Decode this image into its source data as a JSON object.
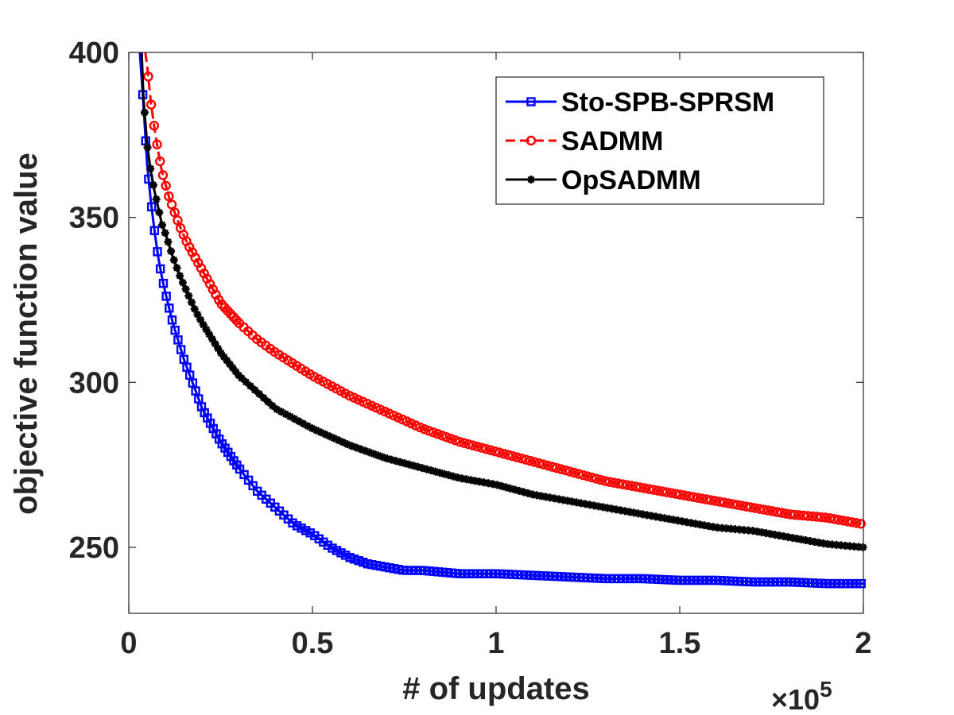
{
  "chart_data": {
    "type": "line",
    "xlabel": "# of updates",
    "ylabel": "objective function value",
    "x_exponent_label": "×10",
    "x_exponent_power": "5",
    "xlim": [
      0,
      2
    ],
    "ylim": [
      230,
      400
    ],
    "xticks": [
      0,
      0.5,
      1,
      1.5,
      2
    ],
    "xtick_labels": [
      "0",
      "0.5",
      "1",
      "1.5",
      "2"
    ],
    "yticks": [
      250,
      300,
      350,
      400
    ],
    "ytick_labels": [
      "250",
      "300",
      "350",
      "400"
    ],
    "grid": false,
    "legend_position": "top-right",
    "series": [
      {
        "name": "Sto-SPB-SPRSM",
        "color": "#0000ff",
        "line_style": "solid",
        "marker": "square",
        "x": [
          0.03,
          0.04,
          0.05,
          0.06,
          0.07,
          0.08,
          0.09,
          0.1,
          0.12,
          0.15,
          0.2,
          0.25,
          0.3,
          0.35,
          0.4,
          0.45,
          0.5,
          0.55,
          0.6,
          0.65,
          0.7,
          0.75,
          0.8,
          0.9,
          1.0,
          1.1,
          1.2,
          1.3,
          1.4,
          1.5,
          1.6,
          1.7,
          1.8,
          1.9,
          2.0
        ],
        "y": [
          400,
          384,
          366,
          355,
          346,
          338,
          332,
          327,
          318,
          307,
          292,
          282,
          274,
          267,
          262,
          257,
          254,
          250,
          247,
          245,
          244,
          243,
          243,
          242,
          242,
          241.5,
          241,
          240.5,
          240.5,
          240,
          240,
          239.5,
          239.5,
          239,
          239
        ]
      },
      {
        "name": "SADMM",
        "color": "#ff0000",
        "line_style": "dashed",
        "marker": "circle",
        "x": [
          0.045,
          0.05,
          0.06,
          0.07,
          0.08,
          0.09,
          0.1,
          0.11,
          0.12,
          0.14,
          0.16,
          0.18,
          0.2,
          0.25,
          0.3,
          0.35,
          0.4,
          0.5,
          0.6,
          0.7,
          0.8,
          0.9,
          1.0,
          1.1,
          1.2,
          1.3,
          1.4,
          1.5,
          1.6,
          1.7,
          1.8,
          1.9,
          2.0
        ],
        "y": [
          400,
          396,
          385,
          377,
          370,
          364,
          360,
          356,
          353,
          347,
          342,
          338,
          334,
          324,
          318,
          313,
          309,
          302,
          296,
          291,
          286,
          282,
          279,
          276,
          273,
          270,
          268,
          266,
          264,
          262,
          260,
          259,
          257
        ]
      },
      {
        "name": "OpSADMM",
        "color": "#000000",
        "line_style": "solid",
        "marker": "asterisk",
        "x": [
          0.035,
          0.04,
          0.05,
          0.06,
          0.07,
          0.08,
          0.09,
          0.1,
          0.12,
          0.14,
          0.16,
          0.18,
          0.2,
          0.25,
          0.3,
          0.35,
          0.4,
          0.5,
          0.6,
          0.7,
          0.8,
          0.9,
          1.0,
          1.1,
          1.2,
          1.3,
          1.4,
          1.5,
          1.6,
          1.7,
          1.8,
          1.9,
          2.0
        ],
        "y": [
          400,
          386,
          372,
          364,
          358,
          353,
          348,
          345,
          338,
          332,
          327,
          322,
          318,
          309,
          302,
          297,
          292,
          286,
          281,
          277,
          274,
          271,
          269,
          266,
          264,
          262,
          260,
          258,
          256,
          255,
          253,
          251,
          250
        ]
      }
    ]
  }
}
